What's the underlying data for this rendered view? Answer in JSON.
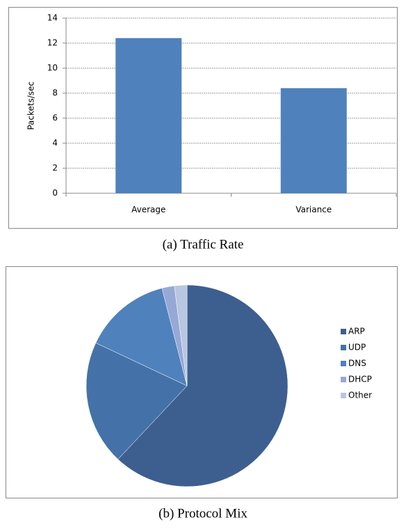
{
  "chart_data": [
    {
      "type": "bar",
      "caption": "(a)  Traffic Rate",
      "ylabel": "Packets/sec",
      "categories": [
        "Average",
        "Variance"
      ],
      "values": [
        12.4,
        8.4
      ],
      "color": "#4f81bd",
      "ylim": [
        0,
        14
      ],
      "yticks": [
        0,
        2,
        4,
        6,
        8,
        10,
        12,
        14
      ],
      "grid": true
    },
    {
      "type": "pie",
      "caption": "(b)  Protocol Mix",
      "categories": [
        "ARP",
        "UDP",
        "DNS",
        "DHCP",
        "Other"
      ],
      "values": [
        62,
        20,
        14,
        2,
        2
      ],
      "colors": [
        "#3d5f8f",
        "#4472a8",
        "#4f81bd",
        "#95a9d4",
        "#b9c6e2"
      ],
      "legend": "right"
    }
  ]
}
